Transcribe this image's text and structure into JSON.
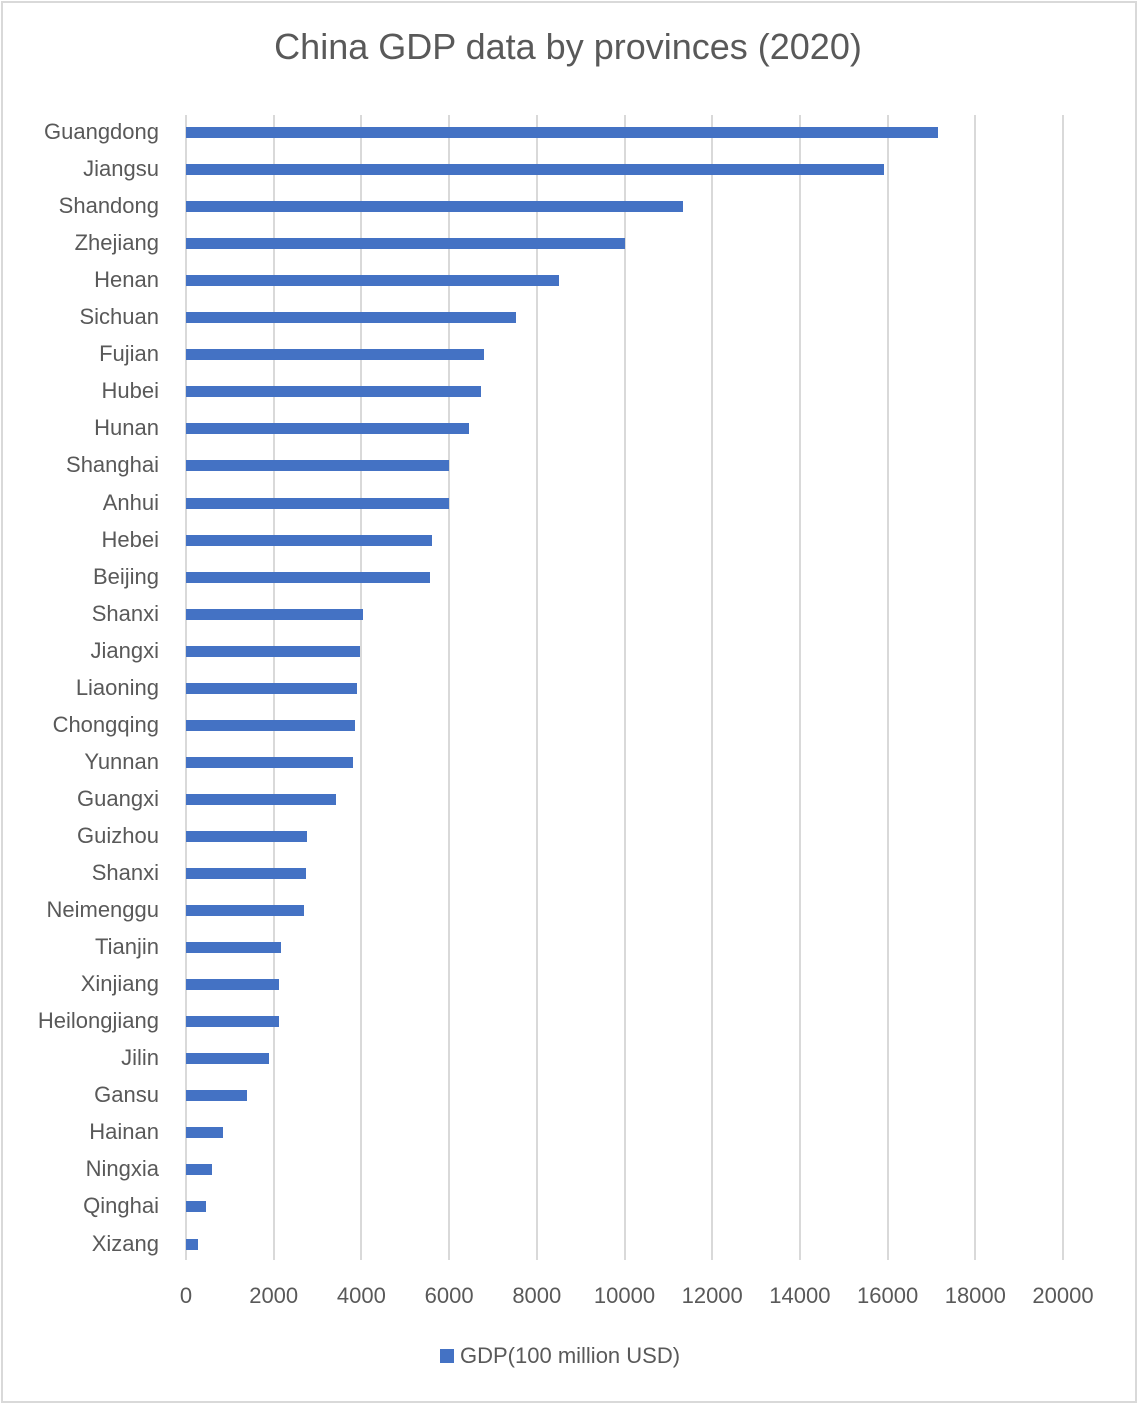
{
  "title": "China GDP data by provinces (2020)",
  "legend": {
    "label": "GDP(100 million USD)",
    "color": "#4472c4"
  },
  "axis": {
    "ticks": [
      "0",
      "2000",
      "4000",
      "6000",
      "8000",
      "10000",
      "12000",
      "14000",
      "16000",
      "18000",
      "20000"
    ]
  },
  "chart_data": {
    "type": "bar",
    "orientation": "horizontal",
    "title": "China GDP data by provinces (2020)",
    "xlabel": "",
    "ylabel": "",
    "xlim": [
      0,
      20000
    ],
    "grid": true,
    "legend_position": "bottom",
    "categories": [
      "Guangdong",
      "Jiangsu",
      "Shandong",
      "Zhejiang",
      "Henan",
      "Sichuan",
      "Fujian",
      "Hubei",
      "Hunan",
      "Shanghai",
      "Anhui",
      "Hebei",
      "Beijing",
      "Shanxi",
      "Jiangxi",
      "Liaoning",
      "Chongqing",
      "Yunnan",
      "Guangxi",
      "Guizhou",
      "Shanxi",
      "Neimenggu",
      "Tianjin",
      "Xinjiang",
      "Heilongjiang",
      "Jilin",
      "Gansu",
      "Hainan",
      "Ningxia",
      "Qinghai",
      "Xizang"
    ],
    "series": [
      {
        "name": "GDP(100 million USD)",
        "color": "#4472c4",
        "values": [
          17160,
          15910,
          11330,
          10000,
          8510,
          7520,
          6800,
          6720,
          6450,
          5990,
          5990,
          5610,
          5575,
          4045,
          3970,
          3890,
          3860,
          3800,
          3420,
          2750,
          2740,
          2690,
          2170,
          2130,
          2110,
          1900,
          1400,
          850,
          600,
          450,
          280
        ]
      }
    ]
  }
}
